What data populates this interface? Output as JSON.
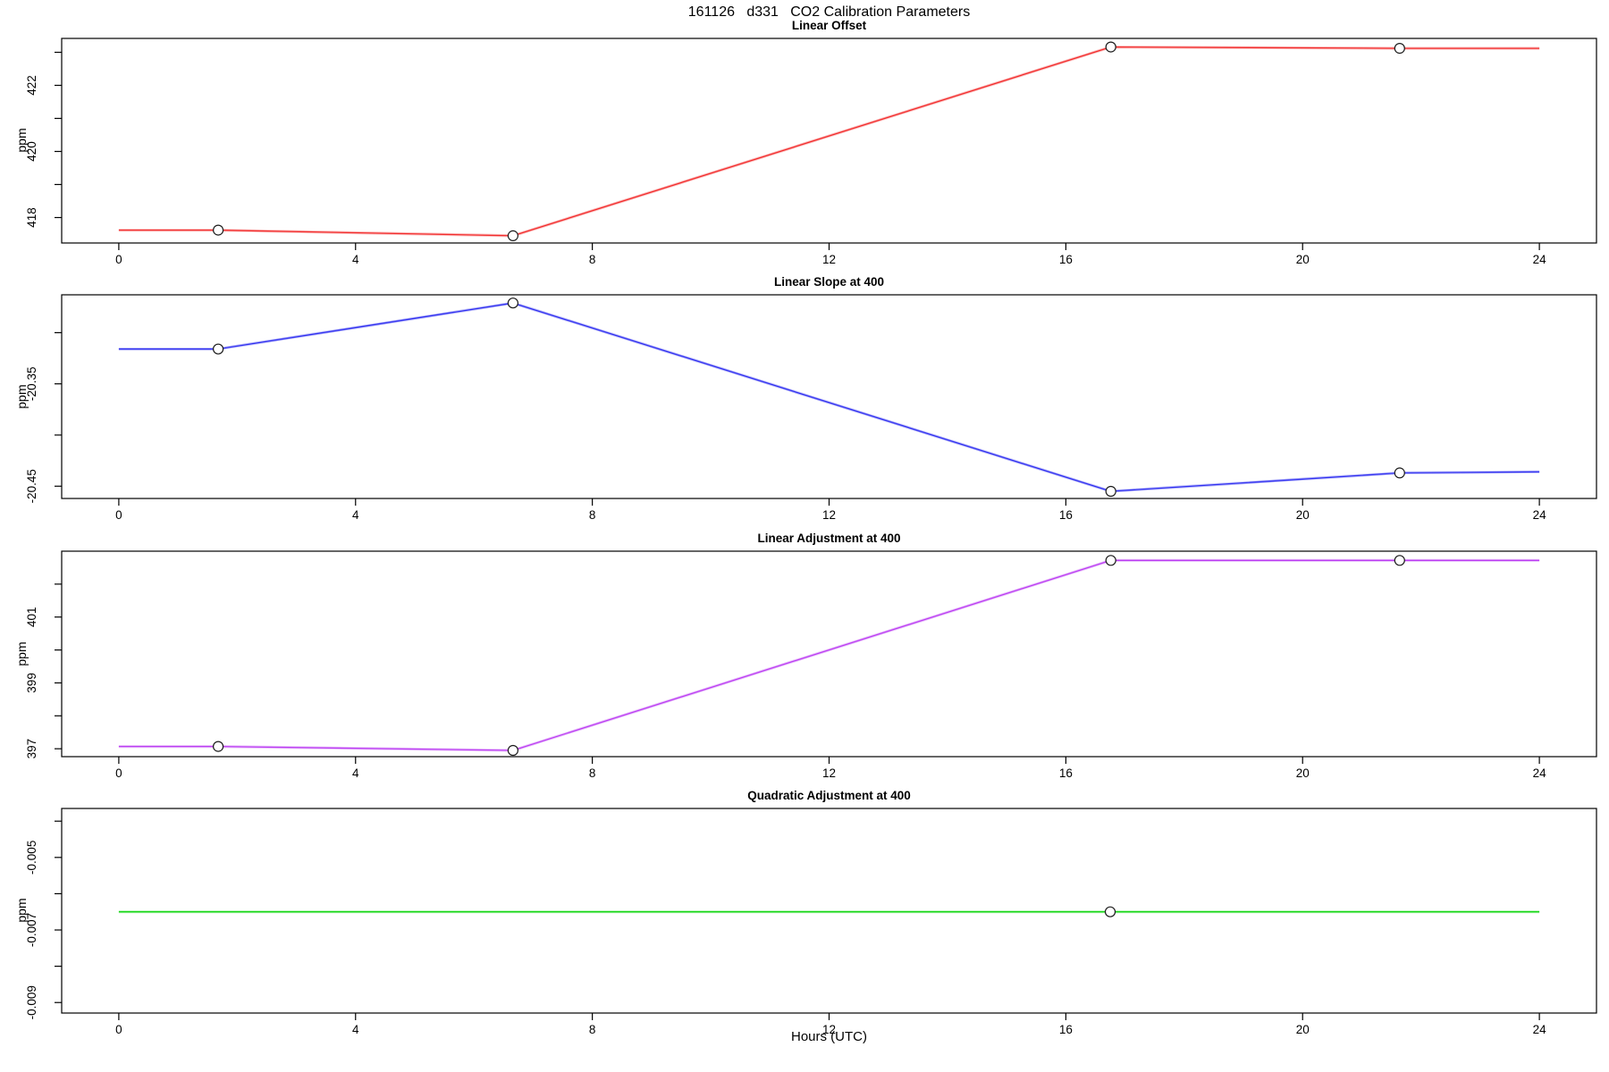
{
  "page": {
    "title": "161126   d331   CO2 Calibration Parameters",
    "xlabel": "Hours (UTC)"
  },
  "chart_data": [
    {
      "type": "line",
      "title": "Linear Offset",
      "ylabel": "ppm",
      "color": "#f22c2c",
      "marker_color": "#1c1c1c",
      "x": [
        0,
        1.68,
        6.66,
        16.76,
        21.64,
        24
      ],
      "y": [
        417.62,
        417.62,
        417.45,
        423.16,
        423.12,
        423.12
      ],
      "markers": {
        "x": [
          1.68,
          6.66,
          16.76,
          21.64
        ],
        "y": [
          417.62,
          417.45,
          423.16,
          423.12
        ]
      },
      "xlim": [
        -0.965,
        24.965
      ],
      "ylim": [
        417.23,
        423.42
      ],
      "xticks": [
        {
          "v": 0,
          "label": "0"
        },
        {
          "v": 4,
          "label": "4"
        },
        {
          "v": 8,
          "label": "8"
        },
        {
          "v": 12,
          "label": "12"
        },
        {
          "v": 16,
          "label": "16"
        },
        {
          "v": 20,
          "label": "20"
        },
        {
          "v": 24,
          "label": "24"
        }
      ],
      "yticks": [
        {
          "v": 418,
          "label": "418"
        },
        {
          "v": 419,
          "label": ""
        },
        {
          "v": 420,
          "label": "420"
        },
        {
          "v": 421,
          "label": ""
        },
        {
          "v": 422,
          "label": "422"
        },
        {
          "v": 423,
          "label": ""
        }
      ],
      "grid": false,
      "legend": "none"
    },
    {
      "type": "line",
      "title": "Linear Slope at 400",
      "ylabel": "ppm",
      "color": "#2e2ef0",
      "marker_color": "#1c1c1c",
      "x": [
        0,
        1.68,
        6.66,
        16.76,
        21.64,
        24
      ],
      "y": [
        -20.316,
        -20.316,
        -20.271,
        -20.455,
        -20.437,
        -20.436
      ],
      "markers": {
        "x": [
          1.68,
          6.66,
          16.76,
          21.64
        ],
        "y": [
          -20.316,
          -20.271,
          -20.455,
          -20.437
        ]
      },
      "xlim": [
        -0.965,
        24.965
      ],
      "ylim": [
        -20.462,
        -20.263
      ],
      "xticks": [
        {
          "v": 0,
          "label": "0"
        },
        {
          "v": 4,
          "label": "4"
        },
        {
          "v": 8,
          "label": "8"
        },
        {
          "v": 12,
          "label": "12"
        },
        {
          "v": 16,
          "label": "16"
        },
        {
          "v": 20,
          "label": "20"
        },
        {
          "v": 24,
          "label": "24"
        }
      ],
      "yticks": [
        {
          "v": -20.3,
          "label": ""
        },
        {
          "v": -20.35,
          "label": "-20.35"
        },
        {
          "v": -20.4,
          "label": ""
        },
        {
          "v": -20.45,
          "label": "-20.45"
        }
      ],
      "grid": false,
      "legend": "none"
    },
    {
      "type": "line",
      "title": "Linear Adjustment at 400",
      "ylabel": "ppm",
      "color": "#bb3df2",
      "marker_color": "#1c1c1c",
      "x": [
        0,
        1.68,
        6.66,
        16.76,
        21.64,
        24
      ],
      "y": [
        397.07,
        397.07,
        396.95,
        402.72,
        402.72,
        402.72
      ],
      "markers": {
        "x": [
          1.68,
          6.66,
          16.76,
          21.64
        ],
        "y": [
          397.07,
          396.95,
          402.72,
          402.72
        ]
      },
      "xlim": [
        -0.965,
        24.965
      ],
      "ylim": [
        396.76,
        403.0
      ],
      "xticks": [
        {
          "v": 0,
          "label": "0"
        },
        {
          "v": 4,
          "label": "4"
        },
        {
          "v": 8,
          "label": "8"
        },
        {
          "v": 12,
          "label": "12"
        },
        {
          "v": 16,
          "label": "16"
        },
        {
          "v": 20,
          "label": "20"
        },
        {
          "v": 24,
          "label": "24"
        }
      ],
      "yticks": [
        {
          "v": 397,
          "label": "397"
        },
        {
          "v": 398,
          "label": ""
        },
        {
          "v": 399,
          "label": "399"
        },
        {
          "v": 400,
          "label": ""
        },
        {
          "v": 401,
          "label": "401"
        },
        {
          "v": 402,
          "label": ""
        }
      ],
      "grid": false,
      "legend": "none"
    },
    {
      "type": "line",
      "title": "Quadratic Adjustment at 400",
      "ylabel": "ppm",
      "color": "#15d615",
      "marker_color": "#1c1c1c",
      "x": [
        0,
        16.75,
        24
      ],
      "y": [
        -0.0065,
        -0.0065,
        -0.0065
      ],
      "markers": {
        "x": [
          16.75
        ],
        "y": [
          -0.0065
        ]
      },
      "xlim": [
        -0.965,
        24.965
      ],
      "ylim": [
        -0.00929,
        -0.00365
      ],
      "xticks": [
        {
          "v": 0,
          "label": "0"
        },
        {
          "v": 4,
          "label": "4"
        },
        {
          "v": 8,
          "label": "8"
        },
        {
          "v": 12,
          "label": "12"
        },
        {
          "v": 16,
          "label": "16"
        },
        {
          "v": 20,
          "label": "20"
        },
        {
          "v": 24,
          "label": "24"
        }
      ],
      "yticks": [
        {
          "v": -0.004,
          "label": ""
        },
        {
          "v": -0.005,
          "label": "-0.005"
        },
        {
          "v": -0.006,
          "label": ""
        },
        {
          "v": -0.007,
          "label": "-0.007"
        },
        {
          "v": -0.008,
          "label": ""
        },
        {
          "v": -0.009,
          "label": "-0.009"
        }
      ],
      "grid": false,
      "legend": "none"
    }
  ]
}
